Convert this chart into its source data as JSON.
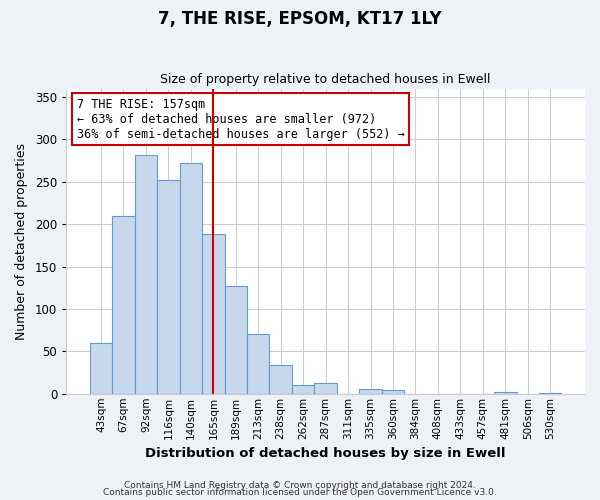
{
  "title": "7, THE RISE, EPSOM, KT17 1LY",
  "subtitle": "Size of property relative to detached houses in Ewell",
  "xlabel": "Distribution of detached houses by size in Ewell",
  "ylabel": "Number of detached properties",
  "bar_labels": [
    "43sqm",
    "67sqm",
    "92sqm",
    "116sqm",
    "140sqm",
    "165sqm",
    "189sqm",
    "213sqm",
    "238sqm",
    "262sqm",
    "287sqm",
    "311sqm",
    "335sqm",
    "360sqm",
    "384sqm",
    "408sqm",
    "433sqm",
    "457sqm",
    "481sqm",
    "506sqm",
    "530sqm"
  ],
  "bar_values": [
    60,
    210,
    282,
    252,
    272,
    188,
    127,
    70,
    34,
    10,
    13,
    0,
    6,
    5,
    0,
    0,
    0,
    0,
    2,
    0,
    1
  ],
  "bar_color": "#c8d8ec",
  "bar_edge_color": "#6699cc",
  "vline_x": 5,
  "vline_color": "#cc0000",
  "annotation_text": "7 THE RISE: 157sqm\n← 63% of detached houses are smaller (972)\n36% of semi-detached houses are larger (552) →",
  "annotation_box_color": "white",
  "annotation_box_edge": "#cc0000",
  "ylim": [
    0,
    360
  ],
  "yticks": [
    0,
    50,
    100,
    150,
    200,
    250,
    300,
    350
  ],
  "footer1": "Contains HM Land Registry data © Crown copyright and database right 2024.",
  "footer2": "Contains public sector information licensed under the Open Government Licence v3.0.",
  "bg_color": "#eef2f7",
  "plot_bg_color": "#ffffff"
}
